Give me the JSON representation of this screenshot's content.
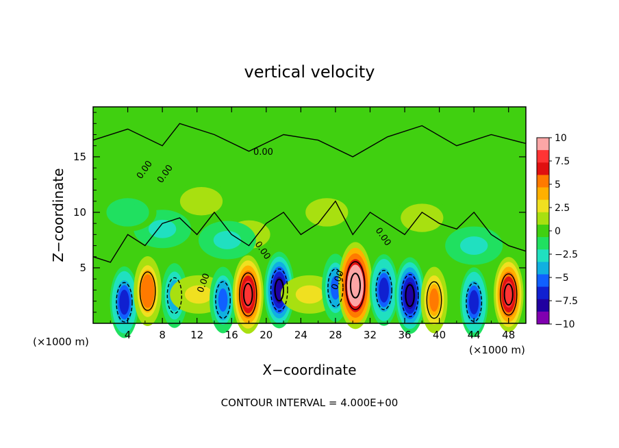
{
  "chart_data": {
    "type": "heatmap",
    "title": "vertical velocity",
    "xlabel": "X−coordinate",
    "ylabel": "Z−coordinate",
    "x_unit_left": "(×1000 m)",
    "x_unit_right": "(×1000 m)",
    "footer": "CONTOUR INTERVAL = 4.000E+00",
    "xlim": [
      0,
      50
    ],
    "ylim": [
      0,
      19.5
    ],
    "x_ticks": [
      "4",
      "8",
      "12",
      "16",
      "20",
      "24",
      "28",
      "32",
      "36",
      "40",
      "44",
      "48"
    ],
    "y_ticks": [
      "5",
      "10",
      "15"
    ],
    "contour_labels": [
      "0.00",
      "0.00",
      "0.00",
      "0.00",
      "0.00",
      "0.00",
      "0.00"
    ],
    "colorbar": {
      "range": [
        -10,
        10
      ],
      "ticks": [
        "10",
        "7.5",
        "5",
        "2.5",
        "0",
        "−2.5",
        "−5",
        "−7.5",
        "−10"
      ],
      "colors": [
        "#fca6a6",
        "#ff3434",
        "#e01010",
        "#ff7a00",
        "#ffb000",
        "#f0e020",
        "#a8e010",
        "#40d010",
        "#20e060",
        "#20e0c0",
        "#10b0e0",
        "#1060ff",
        "#1020d0",
        "#2000a0",
        "#8000b0"
      ]
    },
    "features": [
      {
        "x": 3.6,
        "z": 1.9,
        "w": -6.5
      },
      {
        "x": 6.3,
        "z": 2.9,
        "w": 6.0
      },
      {
        "x": 9.4,
        "z": 2.5,
        "w": -4.5
      },
      {
        "x": 12.2,
        "z": 2.6,
        "w": 3.0
      },
      {
        "x": 15.0,
        "z": 2.1,
        "w": -5.0
      },
      {
        "x": 17.9,
        "z": 2.6,
        "w": 8.5
      },
      {
        "x": 21.5,
        "z": 3.0,
        "w": -8.0
      },
      {
        "x": 25.0,
        "z": 2.6,
        "w": 3.0
      },
      {
        "x": 28.0,
        "z": 3.2,
        "w": -5.5
      },
      {
        "x": 30.3,
        "z": 3.4,
        "w": 11.0
      },
      {
        "x": 33.6,
        "z": 3.0,
        "w": -6.5
      },
      {
        "x": 36.6,
        "z": 2.5,
        "w": -8.0
      },
      {
        "x": 39.4,
        "z": 2.1,
        "w": 5.0
      },
      {
        "x": 44.0,
        "z": 1.9,
        "w": -6.0
      },
      {
        "x": 48.0,
        "z": 2.6,
        "w": 7.5
      },
      {
        "x": 12.5,
        "z": 11.0,
        "w": 1.5
      },
      {
        "x": 18.0,
        "z": 8.0,
        "w": 2.0
      },
      {
        "x": 27.0,
        "z": 10.0,
        "w": 1.5
      },
      {
        "x": 38.0,
        "z": 9.5,
        "w": 1.5
      },
      {
        "x": 8.0,
        "z": 8.5,
        "w": -2.0
      },
      {
        "x": 15.5,
        "z": 7.5,
        "w": -2.5
      },
      {
        "x": 4.0,
        "z": 10.0,
        "w": -1.8
      },
      {
        "x": 44.0,
        "z": 7.0,
        "w": -2.0
      }
    ]
  }
}
